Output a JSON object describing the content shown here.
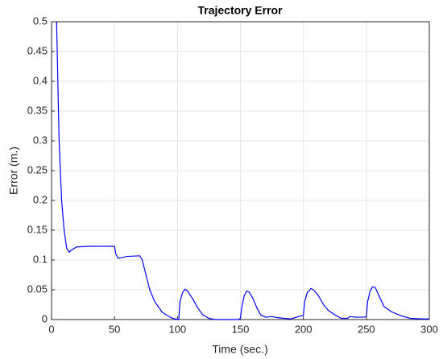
{
  "chart_data": {
    "type": "line",
    "title": "Trajectory Error",
    "x_label": "Time (sec.)",
    "y_label": "Error (m.)",
    "color": "#0000ff",
    "grid": true,
    "xlim": [
      0,
      300
    ],
    "ylim": [
      0,
      0.5
    ],
    "xticks": [
      0,
      50,
      100,
      150,
      200,
      250,
      300
    ],
    "yticks": [
      0,
      0.05,
      0.1,
      0.15,
      0.2,
      0.25,
      0.3,
      0.35,
      0.4,
      0.45,
      0.5
    ],
    "x": [
      4,
      5,
      6,
      8,
      10,
      12,
      14,
      16,
      20,
      30,
      50,
      51,
      53,
      56,
      60,
      70,
      72,
      75,
      78,
      82,
      88,
      95,
      100,
      101,
      102,
      104,
      106,
      108,
      112,
      116,
      120,
      125,
      130,
      148,
      150,
      151,
      153,
      155,
      157,
      160,
      163,
      166,
      170,
      175,
      180,
      190,
      196,
      200,
      201,
      203,
      206,
      208,
      212,
      216,
      220,
      225,
      230,
      235,
      237,
      242,
      248,
      250,
      251,
      253,
      255,
      257,
      260,
      264,
      270,
      278,
      285,
      295,
      300
    ],
    "values": [
      0.5,
      0.4,
      0.3,
      0.2,
      0.15,
      0.12,
      0.113,
      0.117,
      0.122,
      0.123,
      0.123,
      0.11,
      0.103,
      0.104,
      0.106,
      0.107,
      0.1,
      0.075,
      0.05,
      0.03,
      0.012,
      0.003,
      0,
      0,
      0.03,
      0.045,
      0.051,
      0.048,
      0.035,
      0.02,
      0.008,
      0.002,
      0,
      0,
      0.002,
      0.02,
      0.04,
      0.048,
      0.046,
      0.035,
      0.02,
      0.008,
      0.004,
      0.005,
      0.003,
      0.001,
      0.005,
      0.007,
      0.03,
      0.045,
      0.052,
      0.05,
      0.04,
      0.025,
      0.015,
      0.008,
      0.002,
      0.002,
      0.005,
      0.004,
      0.004,
      0.005,
      0.03,
      0.048,
      0.055,
      0.054,
      0.04,
      0.022,
      0.013,
      0.006,
      0.002,
      0.001,
      0.001
    ]
  }
}
